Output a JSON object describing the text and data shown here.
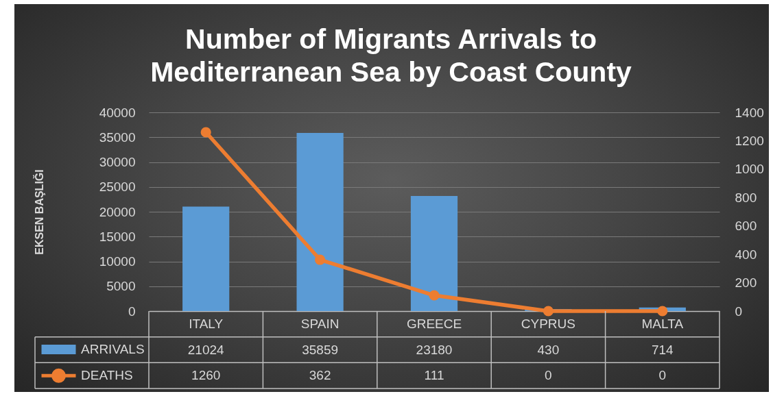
{
  "chart_data": {
    "type": "bar",
    "title": "Number of Migrants Arrivals to Mediterranean Sea by Coast County",
    "ylabel": "EKSEN BAŞLIĞI",
    "categories": [
      "ITALY",
      "SPAIN",
      "GREECE",
      "CYPRUS",
      "MALTA"
    ],
    "series": [
      {
        "name": "ARRIVALS",
        "color": "#5b9bd5",
        "values": [
          21024,
          35859,
          23180,
          430,
          714
        ]
      },
      {
        "name": "DEATHS",
        "type": "line",
        "axis": "y2",
        "color": "#ed7d31",
        "values": [
          1260,
          362,
          111,
          0,
          0
        ]
      }
    ],
    "ylim": [
      0,
      40000
    ],
    "yticks": [
      0,
      5000,
      10000,
      15000,
      20000,
      25000,
      30000,
      35000,
      40000
    ],
    "y2lim": [
      0,
      1400
    ],
    "y2ticks": [
      0,
      200,
      400,
      600,
      800,
      1000,
      1200,
      1400
    ],
    "grid": "y",
    "legend": "bottom left",
    "marker": "circle",
    "data_labels": true
  }
}
